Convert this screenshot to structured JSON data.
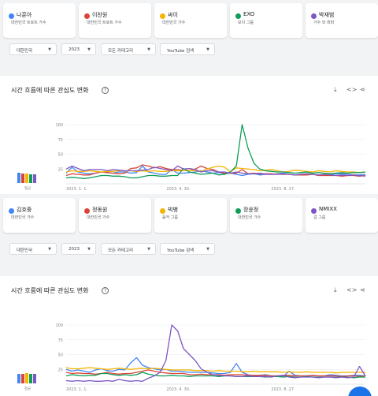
{
  "sections": [
    {
      "terms": [
        {
          "name": "나훈아",
          "sub": "대한민국 트로트 가수",
          "color": "#4285f4"
        },
        {
          "name": "이찬원",
          "sub": "대한민국 트로트 가수",
          "color": "#db4437"
        },
        {
          "name": "싸이",
          "sub": "대한민국 가수",
          "color": "#f4b400"
        },
        {
          "name": "EXO",
          "sub": "보이 그룹",
          "color": "#0f9d58"
        },
        {
          "name": "박재범",
          "sub": "가수 와 래퍼",
          "color": "#7e57c2"
        }
      ],
      "filters": {
        "country": "대한민국",
        "year": "2023",
        "category": "모든 카테고리",
        "search": "YouTube 검색"
      },
      "title": "시간 흐름에 따른 관심도 변화",
      "avg_label": "평균",
      "chart_data": {
        "type": "line",
        "x_ticks": [
          "2023. 1. 1.",
          "2023. 4. 30.",
          "2023. 8. 27."
        ],
        "y_ticks": [
          100,
          75,
          50,
          25
        ],
        "ylim": [
          0,
          100
        ],
        "series": [
          {
            "color": "#4285f4",
            "values": [
              18,
              28,
              20,
              18,
              17,
              18,
              20,
              19,
              18,
              20,
              20,
              18,
              19,
              30,
              20,
              18,
              16,
              16,
              24,
              18,
              18,
              19,
              20,
              22,
              20,
              18,
              19,
              17,
              18,
              16,
              14,
              16,
              17,
              15,
              16,
              16,
              17,
              18,
              16,
              15,
              16,
              17,
              16,
              15,
              15,
              16,
              17,
              17,
              16,
              15,
              15,
              16
            ]
          },
          {
            "color": "#db4437",
            "values": [
              14,
              17,
              16,
              15,
              15,
              18,
              20,
              19,
              18,
              17,
              18,
              26,
              27,
              32,
              30,
              27,
              29,
              26,
              24,
              24,
              22,
              23,
              25,
              30,
              26,
              24,
              20,
              18,
              18,
              18,
              24,
              17,
              18,
              17,
              17,
              17,
              16,
              16,
              16,
              15,
              15,
              15,
              16,
              14,
              14,
              14,
              14,
              13,
              14,
              14,
              13,
              14
            ]
          },
          {
            "color": "#f4b400",
            "values": [
              20,
              22,
              21,
              21,
              22,
              21,
              20,
              21,
              21,
              22,
              22,
              22,
              21,
              22,
              21,
              22,
              21,
              21,
              22,
              22,
              22,
              23,
              22,
              21,
              25,
              28,
              30,
              28,
              20,
              27,
              26,
              25,
              24,
              22,
              23,
              24,
              22,
              20,
              21,
              23,
              22,
              21,
              20,
              22,
              21,
              20,
              22,
              21,
              20,
              20,
              19,
              20
            ]
          },
          {
            "color": "#0f9d58",
            "values": [
              10,
              11,
              10,
              9,
              10,
              12,
              14,
              14,
              13,
              13,
              12,
              10,
              10,
              12,
              14,
              14,
              13,
              13,
              14,
              14,
              26,
              20,
              18,
              16,
              17,
              18,
              15,
              16,
              20,
              30,
              100,
              60,
              35,
              25,
              22,
              21,
              20,
              20,
              19,
              18,
              19,
              20,
              18,
              19,
              18,
              17,
              18,
              19,
              18,
              19,
              19,
              20
            ]
          },
          {
            "color": "#7e57c2",
            "values": [
              25,
              30,
              26,
              22,
              24,
              24,
              24,
              22,
              24,
              23,
              22,
              22,
              22,
              23,
              24,
              28,
              26,
              24,
              22,
              30,
              25,
              26,
              24,
              20,
              22,
              22,
              20,
              20,
              18,
              20,
              18,
              17,
              17,
              18,
              16,
              16,
              16,
              17,
              16,
              15,
              16,
              17,
              16,
              15,
              16,
              15,
              14,
              15,
              14,
              15,
              14,
              13
            ]
          }
        ]
      }
    },
    {
      "terms": [
        {
          "name": "김호중",
          "sub": "대한민국 가수",
          "color": "#4285f4"
        },
        {
          "name": "정동원",
          "sub": "대한민국 가수",
          "color": "#db4437"
        },
        {
          "name": "빅뱅",
          "sub": "음악 그룹",
          "color": "#f4b400"
        },
        {
          "name": "장윤정",
          "sub": "대한민국 가수",
          "color": "#0f9d58"
        },
        {
          "name": "NMIXX",
          "sub": "걸 그룹",
          "color": "#7e57c2"
        }
      ],
      "filters": {
        "country": "대한민국",
        "year": "2023",
        "category": "모든 카테고리",
        "search": "YouTube 검색"
      },
      "title": "시간 흐름에 따른 관심도 변화",
      "avg_label": "평균",
      "chart_data": {
        "type": "line",
        "x_ticks": [
          "2023. 1. 1.",
          "2023. 4. 30.",
          "2023. 8. 27."
        ],
        "y_ticks": [
          100,
          75,
          50,
          25
        ],
        "ylim": [
          0,
          100
        ],
        "series": [
          {
            "color": "#4285f4",
            "values": [
              25,
              22,
              24,
              22,
              20,
              24,
              26,
              23,
              22,
              25,
              24,
              36,
              45,
              32,
              28,
              26,
              24,
              25,
              22,
              22,
              21,
              20,
              20,
              20,
              20,
              19,
              18,
              18,
              20,
              35,
              20,
              16,
              14,
              15,
              16,
              14,
              14,
              13,
              22,
              15,
              14,
              14,
              15,
              14,
              14,
              16,
              15,
              14,
              14,
              15,
              15,
              14
            ]
          },
          {
            "color": "#db4437",
            "values": [
              20,
              18,
              19,
              18,
              18,
              17,
              18,
              20,
              18,
              17,
              18,
              18,
              20,
              22,
              24,
              22,
              20,
              19,
              18,
              18,
              18,
              16,
              16,
              17,
              16,
              16,
              16,
              15,
              16,
              16,
              16,
              15,
              15,
              15,
              15,
              14,
              14,
              15,
              15,
              14,
              14,
              14,
              15,
              14,
              14,
              14,
              14,
              13,
              14,
              14,
              13,
              14
            ]
          },
          {
            "color": "#f4b400",
            "values": [
              28,
              26,
              26,
              27,
              28,
              27,
              26,
              25,
              26,
              27,
              26,
              25,
              26,
              27,
              26,
              27,
              26,
              25,
              24,
              24,
              24,
              24,
              23,
              23,
              23,
              22,
              23,
              22,
              22,
              22,
              21,
              21,
              22,
              21,
              21,
              21,
              21,
              20,
              21,
              20,
              20,
              21,
              20,
              20,
              20,
              20,
              19,
              20,
              20,
              20,
              20,
              20
            ]
          },
          {
            "color": "#0f9d58",
            "values": [
              14,
              16,
              15,
              14,
              15,
              15,
              18,
              18,
              16,
              15,
              16,
              15,
              16,
              20,
              17,
              15,
              14,
              14,
              15,
              14,
              14,
              13,
              14,
              14,
              14,
              14,
              13,
              14,
              14,
              13,
              13,
              13,
              13,
              13,
              12,
              13,
              13,
              12,
              13,
              12,
              12,
              13,
              12,
              12,
              12,
              12,
              12,
              12,
              12,
              11,
              12,
              12
            ]
          },
          {
            "color": "#7e57c2",
            "values": [
              6,
              5,
              6,
              5,
              6,
              5,
              5,
              6,
              5,
              8,
              6,
              5,
              6,
              5,
              10,
              14,
              20,
              40,
              100,
              90,
              60,
              50,
              40,
              26,
              20,
              16,
              15,
              14,
              14,
              13,
              13,
              14,
              13,
              13,
              13,
              12,
              14,
              15,
              12,
              11,
              12,
              12,
              12,
              11,
              12,
              12,
              11,
              12,
              11,
              12,
              30,
              14
            ]
          }
        ]
      }
    }
  ]
}
